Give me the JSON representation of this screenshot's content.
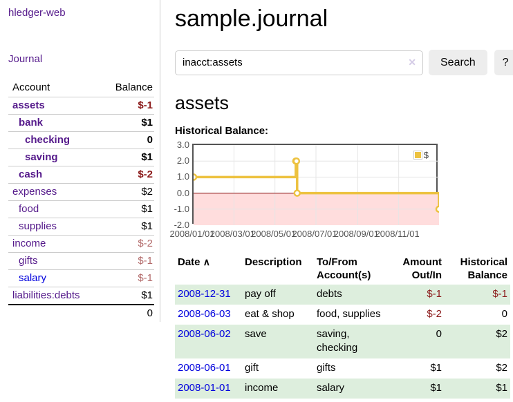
{
  "sidebar": {
    "brand": "hledger-web",
    "nav": {
      "journal": "Journal"
    },
    "accounts_table": {
      "headers": {
        "account": "Account",
        "balance": "Balance"
      },
      "rows": [
        {
          "name": "assets",
          "depth": 1,
          "bold": true,
          "balance": "$-1",
          "negative": "strong",
          "link_color": "purple"
        },
        {
          "name": "bank",
          "depth": 2,
          "bold": true,
          "balance": "$1",
          "negative": "none",
          "link_color": "purple"
        },
        {
          "name": "checking",
          "depth": 3,
          "bold": true,
          "balance": "0",
          "negative": "none",
          "link_color": "purple"
        },
        {
          "name": "saving",
          "depth": 3,
          "bold": true,
          "balance": "$1",
          "negative": "none",
          "link_color": "purple"
        },
        {
          "name": "cash",
          "depth": 2,
          "bold": true,
          "balance": "$-2",
          "negative": "strong",
          "link_color": "purple"
        },
        {
          "name": "expenses",
          "depth": 1,
          "bold": false,
          "balance": "$2",
          "negative": "none",
          "link_color": "purple"
        },
        {
          "name": "food",
          "depth": 2,
          "bold": false,
          "balance": "$1",
          "negative": "none",
          "link_color": "purple"
        },
        {
          "name": "supplies",
          "depth": 2,
          "bold": false,
          "balance": "$1",
          "negative": "none",
          "link_color": "purple"
        },
        {
          "name": "income",
          "depth": 1,
          "bold": false,
          "balance": "$-2",
          "negative": "soft",
          "link_color": "purple"
        },
        {
          "name": "gifts",
          "depth": 2,
          "bold": false,
          "balance": "$-1",
          "negative": "soft",
          "link_color": "purple"
        },
        {
          "name": "salary",
          "depth": 2,
          "bold": false,
          "balance": "$-1",
          "negative": "soft",
          "link_color": "blue"
        },
        {
          "name": "liabilities:debts",
          "depth": 1,
          "bold": false,
          "balance": "$1",
          "negative": "none",
          "link_color": "purple"
        }
      ],
      "total": "0"
    }
  },
  "header": {
    "title": "sample.journal"
  },
  "search": {
    "value": "inacct:assets",
    "clear_icon": "✕",
    "button": "Search",
    "help_button": "?"
  },
  "account_page": {
    "title": "assets",
    "chart_label": "Historical Balance:"
  },
  "chart_data": {
    "type": "line",
    "title": "Historical Balance:",
    "step": true,
    "ylim": [
      -2,
      3
    ],
    "y_ticks": [
      "3.0",
      "2.0",
      "1.0",
      "0.0",
      "-1.0",
      "-2.0"
    ],
    "x_ticks": [
      "2008/01/01",
      "2008/03/01",
      "2008/05/01",
      "2008/07/01",
      "2008/09/01",
      "2008/11/01"
    ],
    "x_range": [
      "2008-01-01",
      "2008-12-31"
    ],
    "grid": true,
    "legend": {
      "label": "$",
      "position": "top-right"
    },
    "series": [
      {
        "name": "$",
        "color": "#edc240",
        "points": [
          [
            "2008-01-01",
            1
          ],
          [
            "2008-06-01",
            2
          ],
          [
            "2008-06-02",
            2
          ],
          [
            "2008-06-03",
            0
          ],
          [
            "2008-12-31",
            -1
          ]
        ]
      }
    ],
    "negative_region_color": "#ffdddd",
    "zero_line_color": "#800000"
  },
  "register_table": {
    "headers": {
      "date": "Date",
      "sort_icon": "∧",
      "description": "Description",
      "tofrom": "To/From Account(s)",
      "amount": "Amount Out/In",
      "balance": "Historical Balance"
    },
    "rows": [
      {
        "date": "2008-12-31",
        "description": "pay off",
        "accounts": "debts",
        "amount": "$-1",
        "amount_negative": true,
        "balance": "$-1",
        "balance_negative": true
      },
      {
        "date": "2008-06-03",
        "description": "eat & shop",
        "accounts": "food, supplies",
        "amount": "$-2",
        "amount_negative": true,
        "balance": "0",
        "balance_negative": false
      },
      {
        "date": "2008-06-02",
        "description": "save",
        "accounts": "saving, checking",
        "amount": "0",
        "amount_negative": false,
        "balance": "$2",
        "balance_negative": false
      },
      {
        "date": "2008-06-01",
        "description": "gift",
        "accounts": "gifts",
        "amount": "$1",
        "amount_negative": false,
        "balance": "$2",
        "balance_negative": false
      },
      {
        "date": "2008-01-01",
        "description": "income",
        "accounts": "salary",
        "amount": "$1",
        "amount_negative": false,
        "balance": "$1",
        "balance_negative": false
      }
    ]
  },
  "colors": {
    "link_purple": "#551a8b",
    "link_blue": "#0000dd",
    "negative_strong": "#8b1a1a",
    "negative_soft": "#b36b6b",
    "row_stripe_green": "#ddeedd",
    "chart_line_gold": "#edc240",
    "chart_negative_region": "#ffdddd",
    "chart_zero_line": "#800000",
    "button_bg": "#ededed"
  }
}
